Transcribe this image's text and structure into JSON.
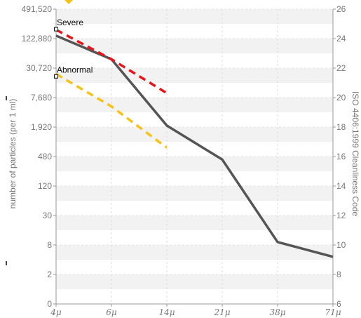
{
  "chart_data": {
    "type": "line",
    "x_categories": [
      "4μ",
      "6μ",
      "14μ",
      "21μ",
      "38μ",
      "71μ"
    ],
    "left_axis": {
      "label": "number of particles (per 1 ml)",
      "scale": "log",
      "ticks": [
        "0",
        "2",
        "8",
        "30",
        "120",
        "480",
        "1,920",
        "7,680",
        "30,720",
        "122,880",
        "491,520"
      ]
    },
    "right_axis": {
      "label": "ISO 4406:1999 Cleanliness Code",
      "range": [
        6,
        26
      ],
      "ticks": [
        "6",
        "8",
        "10",
        "12",
        "14",
        "16",
        "18",
        "20",
        "22",
        "24",
        "26"
      ]
    },
    "series": [
      {
        "style": "solid",
        "color": "#555555",
        "x": [
          "4μ",
          "6μ",
          "14μ",
          "21μ",
          "38μ",
          "71μ"
        ],
        "code_values": [
          24.2,
          22.6,
          18.1,
          15.8,
          10.2,
          9.2
        ]
      },
      {
        "style": "dashed",
        "color": "#e8141a",
        "x": [
          "4μ",
          "6μ",
          "14μ"
        ],
        "code_values": [
          24.6,
          22.6,
          20.3
        ]
      },
      {
        "style": "dashed",
        "color": "#f6c21a",
        "x": [
          "4μ",
          "6μ",
          "14μ"
        ],
        "code_values": [
          21.6,
          19.4,
          16.6
        ]
      }
    ],
    "annotations": [
      {
        "text": "Severe",
        "x": "4μ",
        "code_value": 24.9
      },
      {
        "text": "Abnormal",
        "x": "4μ",
        "code_value": 21.7
      }
    ],
    "grid": true,
    "legend": "none",
    "legend_marker_color": "#f6c21a"
  }
}
